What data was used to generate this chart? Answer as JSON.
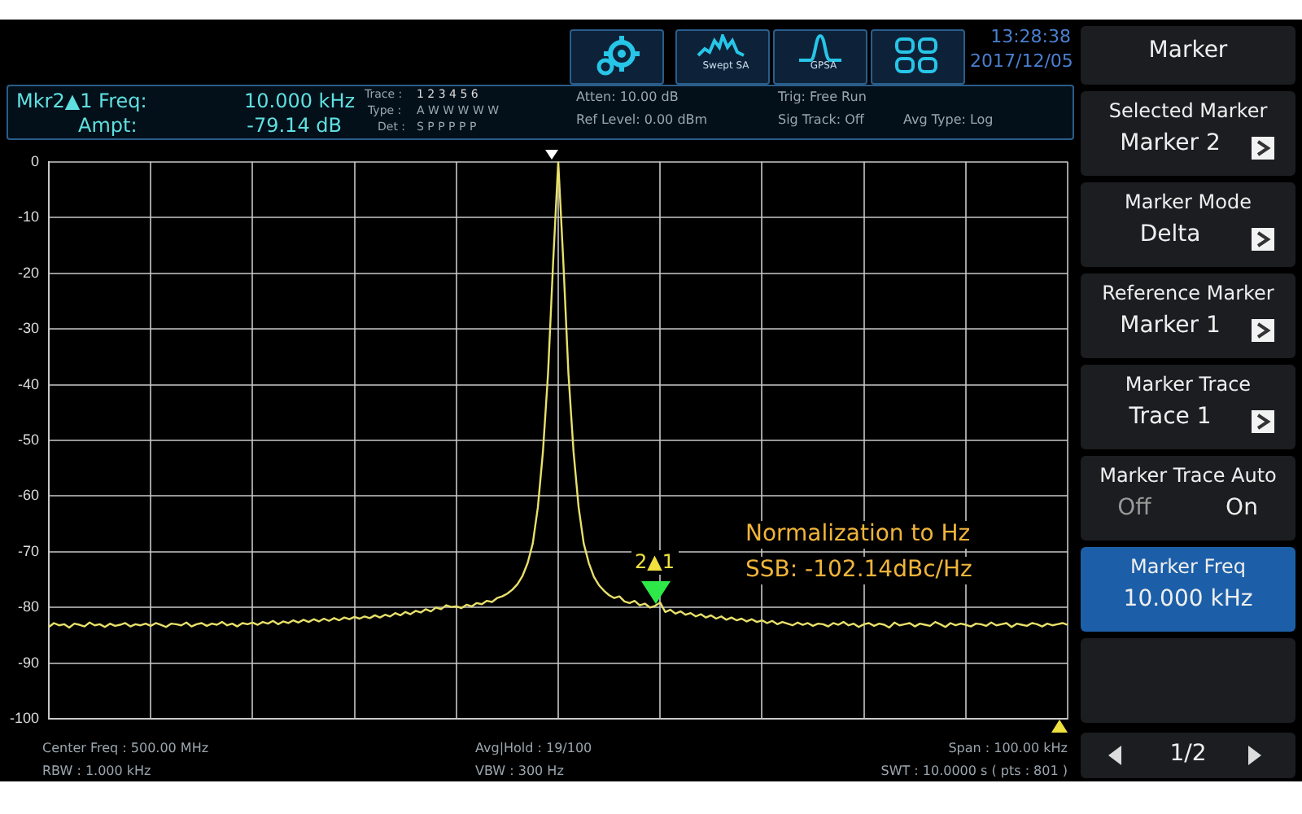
{
  "chart_data": {
    "type": "line",
    "tick_labels": "y",
    "grid": true,
    "marker": "none",
    "line_style": "solid",
    "ylim": [
      -100,
      0
    ],
    "yticks": [
      0,
      -10,
      -20,
      -30,
      -40,
      -50,
      -60,
      -70,
      -80,
      -90,
      -100
    ],
    "categories": [
      null,
      null,
      null,
      null,
      null,
      null,
      null,
      null,
      null,
      null,
      null,
      null,
      null,
      null,
      null,
      null,
      null,
      null,
      null,
      null,
      null,
      null,
      null,
      null,
      null,
      null,
      null,
      null,
      null,
      null,
      null,
      null,
      null,
      null,
      null,
      null,
      null,
      null,
      null,
      null,
      null,
      null,
      null,
      null,
      null,
      null,
      null,
      null,
      null,
      null,
      null,
      null,
      null,
      null,
      null,
      null,
      null,
      null,
      null,
      null,
      null,
      null,
      null,
      null,
      null,
      null,
      null,
      null,
      null,
      null,
      null,
      null,
      null,
      null,
      null,
      null,
      null,
      null,
      null,
      null,
      null,
      null,
      null,
      null,
      null,
      null,
      null,
      null,
      null,
      null,
      null,
      null,
      null,
      null,
      null,
      null,
      null,
      null,
      null,
      null,
      null,
      null,
      null,
      null,
      null,
      null,
      null,
      null,
      null,
      null,
      null,
      null,
      null,
      null,
      null,
      null,
      null,
      null,
      null,
      null,
      null,
      null,
      null,
      null,
      null,
      null,
      null,
      null,
      null,
      null,
      null,
      null,
      null,
      null,
      null,
      null,
      null,
      null,
      null,
      null,
      null,
      null,
      null,
      null,
      null,
      null,
      null,
      null,
      null,
      null,
      null,
      null,
      null,
      null,
      null,
      null,
      null,
      null,
      null,
      null,
      null,
      null,
      null,
      null,
      null,
      null,
      null,
      null,
      null,
      null,
      null,
      null,
      null,
      null,
      null,
      null,
      null,
      null,
      null,
      null,
      null,
      null,
      null,
      null,
      null,
      null,
      null,
      null,
      null,
      null,
      null,
      null,
      null,
      null,
      null,
      null,
      null,
      null,
      null,
      null,
      null
    ],
    "series": [
      {
        "color": "#e8e06a",
        "values": [
          -83.5,
          -82.8,
          -83.2,
          -83.0,
          -83.6,
          -82.9,
          -83.1,
          -83.4,
          -82.7,
          -83.2,
          -83.0,
          -83.5,
          -82.9,
          -83.3,
          -83.1,
          -82.8,
          -83.4,
          -83.0,
          -83.2,
          -82.9,
          -83.3,
          -82.8,
          -83.1,
          -83.5,
          -82.9,
          -83.0,
          -83.2,
          -82.7,
          -83.4,
          -83.0,
          -82.8,
          -83.3,
          -82.9,
          -83.1,
          -82.6,
          -83.2,
          -82.9,
          -83.4,
          -82.8,
          -83.0,
          -82.7,
          -83.1,
          -82.6,
          -82.9,
          -82.4,
          -83.0,
          -82.5,
          -82.8,
          -82.3,
          -82.7,
          -82.2,
          -82.6,
          -82.1,
          -82.5,
          -82.0,
          -82.4,
          -81.9,
          -82.3,
          -81.8,
          -82.1,
          -81.7,
          -82.0,
          -81.6,
          -81.9,
          -81.4,
          -81.8,
          -81.3,
          -81.6,
          -81.0,
          -81.4,
          -80.8,
          -81.2,
          -80.6,
          -80.9,
          -80.3,
          -80.7,
          -80.0,
          -80.3,
          -79.6,
          -79.9,
          -79.8,
          -80.1,
          -79.5,
          -79.8,
          -79.2,
          -79.4,
          -78.8,
          -79.0,
          -78.3,
          -78.0,
          -77.5,
          -76.8,
          -75.8,
          -74.3,
          -72.0,
          -68.5,
          -62.0,
          -52.0,
          -38.0,
          -18.0,
          0,
          -18.0,
          -38.0,
          -52.0,
          -62.0,
          -68.5,
          -72.0,
          -74.5,
          -76.0,
          -77.0,
          -77.8,
          -78.3,
          -78.0,
          -78.9,
          -79.2,
          -78.8,
          -79.6,
          -79.3,
          -80.0,
          -79.7,
          -79.1,
          -80.8,
          -80.4,
          -81.1,
          -80.7,
          -81.3,
          -81.0,
          -81.6,
          -81.2,
          -81.8,
          -81.4,
          -82.0,
          -81.6,
          -82.2,
          -81.8,
          -82.3,
          -82.0,
          -82.5,
          -82.1,
          -82.6,
          -82.3,
          -82.8,
          -82.4,
          -83.0,
          -82.6,
          -82.9,
          -83.2,
          -82.7,
          -83.1,
          -82.8,
          -83.3,
          -82.9,
          -83.0,
          -83.4,
          -82.8,
          -83.1,
          -82.6,
          -83.2,
          -82.9,
          -83.5,
          -83.0,
          -82.8,
          -83.3,
          -82.9,
          -83.1,
          -83.6,
          -82.7,
          -83.2,
          -83.0,
          -82.8,
          -83.4,
          -82.9,
          -83.1,
          -83.3,
          -82.6,
          -83.0,
          -83.5,
          -82.8,
          -83.2,
          -82.9,
          -83.1,
          -83.4,
          -82.9,
          -83.0,
          -83.3,
          -82.7,
          -83.2,
          -83.0,
          -82.8,
          -83.5,
          -82.9,
          -83.1,
          -83.3,
          -82.8,
          -83.0,
          -83.4,
          -82.9,
          -83.2,
          -83.0,
          -82.8,
          -83.1
        ]
      }
    ],
    "annotations": [
      "13:28:38",
      "2017/12/05",
      "Mkr2▲1 Freq:",
      "10.000 kHz",
      "Ampt:",
      "-79.14 dB",
      "Trace :",
      "1  2  3  4  5  6",
      "Type :",
      "A  W  W  W  W  W",
      "Det :",
      "S  P  P  P  P  P",
      "Atten: 10.00 dB",
      "Ref Level: 0.00 dBm",
      "Trig: Free Run",
      "Sig Track: Off",
      "Avg Type: Log",
      "Swept SA",
      "GPSA",
      "Normalization to Hz",
      "SSB:   -102.14dBc/Hz",
      "2▲1",
      "Center Freq : 500.00 MHz",
      "RBW : 1.000 kHz",
      "Avg|Hold : 19/100",
      "VBW : 300 Hz",
      "Span : 100.00 kHz",
      "SWT : 10.0000 s ( pts : 801 )",
      "Marker",
      "Selected Marker",
      "Marker 2",
      "Marker Mode",
      "Delta",
      "Reference Marker",
      "Marker 1",
      "Marker Trace",
      "Trace 1",
      "Marker Trace Auto",
      "Off",
      "On",
      "Marker Freq",
      "10.000 kHz",
      "1/2"
    ]
  }
}
